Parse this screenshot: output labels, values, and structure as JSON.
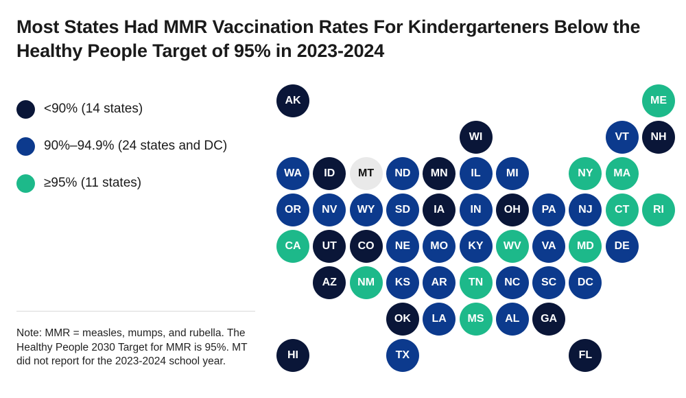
{
  "title": "Most States Had MMR Vaccination Rates For Kindergarteners Below the Healthy People Target of 95% in 2023-2024",
  "legend": [
    {
      "key": "low",
      "label": "<90% (14 states)",
      "color": "#0a1638"
    },
    {
      "key": "mid",
      "label": "90%–94.9% (24 states and DC)",
      "color": "#0c3a8d"
    },
    {
      "key": "high",
      "label": "≥95% (11 states)",
      "color": "#1db98a"
    }
  ],
  "nodata_color": "#e9e9e9",
  "note": "Note: MMR = measles, mumps, and rubella. The Healthy People 2030 Target for MMR is 95%. MT did not report for the 2023-2024 school year.",
  "states": [
    {
      "abbr": "AK",
      "category": "low"
    },
    {
      "abbr": "ME",
      "category": "high"
    },
    {
      "abbr": "WI",
      "category": "low"
    },
    {
      "abbr": "VT",
      "category": "mid"
    },
    {
      "abbr": "NH",
      "category": "low"
    },
    {
      "abbr": "WA",
      "category": "mid"
    },
    {
      "abbr": "ID",
      "category": "low"
    },
    {
      "abbr": "MT",
      "category": "nodata"
    },
    {
      "abbr": "ND",
      "category": "mid"
    },
    {
      "abbr": "MN",
      "category": "low"
    },
    {
      "abbr": "IL",
      "category": "mid"
    },
    {
      "abbr": "MI",
      "category": "mid"
    },
    {
      "abbr": "NY",
      "category": "high"
    },
    {
      "abbr": "MA",
      "category": "high"
    },
    {
      "abbr": "OR",
      "category": "mid"
    },
    {
      "abbr": "NV",
      "category": "mid"
    },
    {
      "abbr": "WY",
      "category": "mid"
    },
    {
      "abbr": "SD",
      "category": "mid"
    },
    {
      "abbr": "IA",
      "category": "low"
    },
    {
      "abbr": "IN",
      "category": "mid"
    },
    {
      "abbr": "OH",
      "category": "low"
    },
    {
      "abbr": "PA",
      "category": "mid"
    },
    {
      "abbr": "NJ",
      "category": "mid"
    },
    {
      "abbr": "CT",
      "category": "high"
    },
    {
      "abbr": "RI",
      "category": "high"
    },
    {
      "abbr": "CA",
      "category": "high"
    },
    {
      "abbr": "UT",
      "category": "low"
    },
    {
      "abbr": "CO",
      "category": "low"
    },
    {
      "abbr": "NE",
      "category": "mid"
    },
    {
      "abbr": "MO",
      "category": "mid"
    },
    {
      "abbr": "KY",
      "category": "mid"
    },
    {
      "abbr": "WV",
      "category": "high"
    },
    {
      "abbr": "VA",
      "category": "mid"
    },
    {
      "abbr": "MD",
      "category": "high"
    },
    {
      "abbr": "DE",
      "category": "mid"
    },
    {
      "abbr": "AZ",
      "category": "low"
    },
    {
      "abbr": "NM",
      "category": "high"
    },
    {
      "abbr": "KS",
      "category": "mid"
    },
    {
      "abbr": "AR",
      "category": "mid"
    },
    {
      "abbr": "TN",
      "category": "high"
    },
    {
      "abbr": "NC",
      "category": "mid"
    },
    {
      "abbr": "SC",
      "category": "mid"
    },
    {
      "abbr": "DC",
      "category": "mid"
    },
    {
      "abbr": "OK",
      "category": "low"
    },
    {
      "abbr": "LA",
      "category": "mid"
    },
    {
      "abbr": "MS",
      "category": "high"
    },
    {
      "abbr": "AL",
      "category": "mid"
    },
    {
      "abbr": "GA",
      "category": "low"
    },
    {
      "abbr": "HI",
      "category": "low"
    },
    {
      "abbr": "TX",
      "category": "mid"
    },
    {
      "abbr": "FL",
      "category": "low"
    }
  ]
}
